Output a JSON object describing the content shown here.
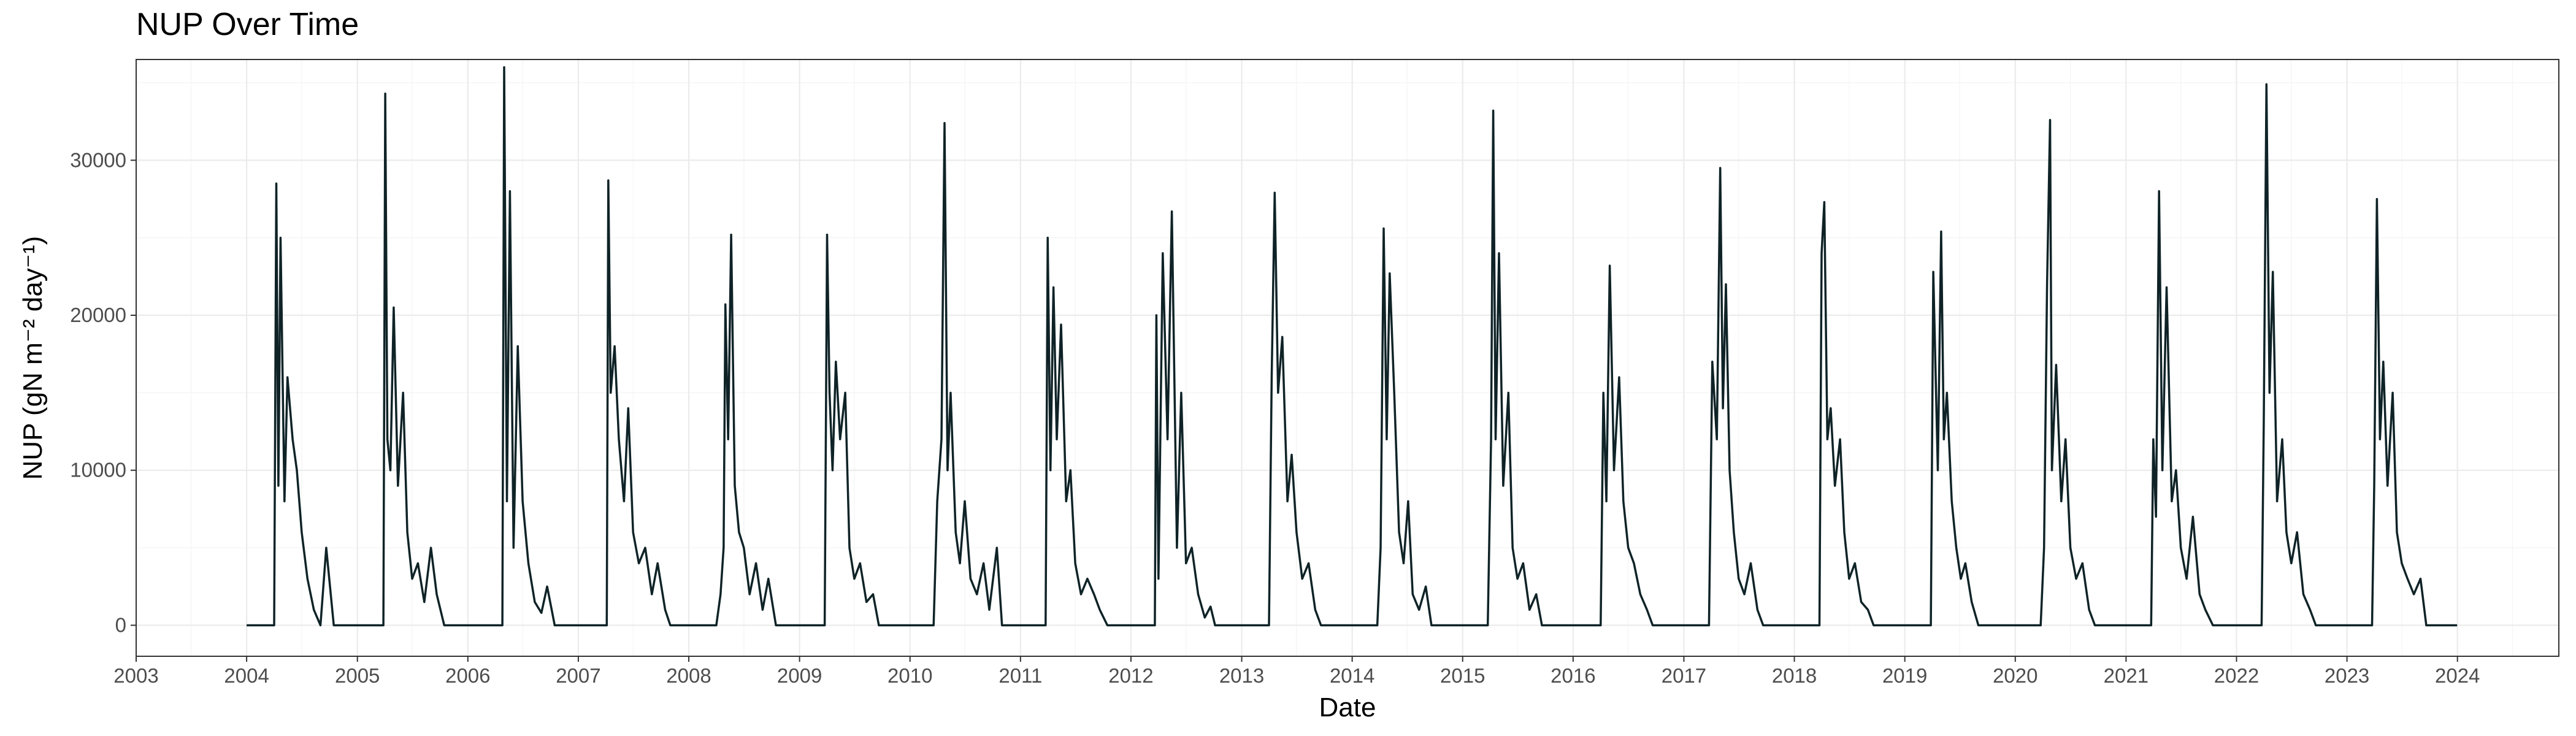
{
  "chart_data": {
    "type": "line",
    "title": "NUP Over Time",
    "xlabel": "Date",
    "ylabel": "NUP (gN m⁻² day⁻¹)",
    "ylim": [
      -2000,
      36500
    ],
    "xlim": [
      "2003-01-01",
      "2024-12-01"
    ],
    "x_ticks": [
      "2003",
      "2004",
      "2005",
      "2006",
      "2007",
      "2008",
      "2009",
      "2010",
      "2011",
      "2012",
      "2013",
      "2014",
      "2015",
      "2016",
      "2017",
      "2018",
      "2019",
      "2020",
      "2021",
      "2022",
      "2023",
      "2024"
    ],
    "y_ticks": [
      0,
      10000,
      20000,
      30000
    ],
    "grid": true,
    "line_color": "#0f2327",
    "series": [
      {
        "x": [
          "2004-01-01",
          "2004-04-01",
          "2004-04-08",
          "2004-04-15",
          "2004-04-22",
          "2004-05-05",
          "2004-05-15",
          "2004-06-01",
          "2004-06-15",
          "2004-07-01",
          "2004-07-20",
          "2004-08-10",
          "2004-09-01",
          "2004-09-20",
          "2004-10-15",
          "2004-11-01",
          "2004-12-31",
          "2005-03-28",
          "2005-04-03",
          "2005-04-10",
          "2005-04-20",
          "2005-05-01",
          "2005-05-15",
          "2005-06-01",
          "2005-06-15",
          "2005-07-01",
          "2005-07-20",
          "2005-08-10",
          "2005-09-01",
          "2005-09-20",
          "2005-10-15",
          "2005-11-01",
          "2005-12-31",
          "2006-04-25",
          "2006-05-01",
          "2006-05-10",
          "2006-05-20",
          "2006-06-01",
          "2006-06-15",
          "2006-07-01",
          "2006-07-20",
          "2006-08-10",
          "2006-09-01",
          "2006-09-20",
          "2006-10-15",
          "2006-11-01",
          "2006-12-31",
          "2007-04-05",
          "2007-04-10",
          "2007-04-18",
          "2007-05-01",
          "2007-05-15",
          "2007-06-01",
          "2007-06-15",
          "2007-07-01",
          "2007-07-20",
          "2007-08-10",
          "2007-09-01",
          "2007-09-20",
          "2007-10-15",
          "2007-11-01",
          "2007-12-31",
          "2008-04-01",
          "2008-04-15",
          "2008-04-25",
          "2008-05-01",
          "2008-05-10",
          "2008-05-20",
          "2008-06-01",
          "2008-06-15",
          "2008-07-01",
          "2008-07-20",
          "2008-08-10",
          "2008-09-01",
          "2008-09-20",
          "2008-10-15",
          "2008-11-01",
          "2008-12-31",
          "2009-03-25",
          "2009-04-02",
          "2009-04-10",
          "2009-04-20",
          "2009-05-01",
          "2009-05-15",
          "2009-06-01",
          "2009-06-15",
          "2009-07-01",
          "2009-07-20",
          "2009-08-10",
          "2009-09-01",
          "2009-09-20",
          "2009-10-15",
          "2009-11-01",
          "2009-12-31",
          "2010-03-20",
          "2010-04-01",
          "2010-04-15",
          "2010-04-25",
          "2010-05-05",
          "2010-05-15",
          "2010-06-01",
          "2010-06-15",
          "2010-07-01",
          "2010-07-20",
          "2010-08-10",
          "2010-09-01",
          "2010-09-20",
          "2010-10-15",
          "2010-11-01",
          "2010-12-31",
          "2011-03-25",
          "2011-04-01",
          "2011-04-10",
          "2011-04-20",
          "2011-05-01",
          "2011-05-15",
          "2011-06-01",
          "2011-06-15",
          "2011-07-01",
          "2011-07-20",
          "2011-08-10",
          "2011-09-01",
          "2011-09-20",
          "2011-10-15",
          "2011-11-01",
          "2011-12-31",
          "2012-03-20",
          "2012-03-25",
          "2012-04-01",
          "2012-04-15",
          "2012-05-01",
          "2012-05-15",
          "2012-06-01",
          "2012-06-15",
          "2012-07-01",
          "2012-07-20",
          "2012-08-10",
          "2012-09-01",
          "2012-09-20",
          "2012-10-05",
          "2012-10-20",
          "2012-12-31",
          "2013-04-01",
          "2013-04-10",
          "2013-04-20",
          "2013-05-01",
          "2013-05-15",
          "2013-06-01",
          "2013-06-15",
          "2013-07-01",
          "2013-07-20",
          "2013-08-10",
          "2013-09-01",
          "2013-09-20",
          "2013-10-15",
          "2013-11-01",
          "2013-12-31",
          "2014-03-25",
          "2014-04-05",
          "2014-04-15",
          "2014-04-25",
          "2014-05-05",
          "2014-05-20",
          "2014-06-05",
          "2014-06-20",
          "2014-07-05",
          "2014-07-20",
          "2014-08-10",
          "2014-09-01",
          "2014-09-20",
          "2014-10-15",
          "2014-11-01",
          "2014-12-31",
          "2015-03-25",
          "2015-04-05",
          "2015-04-12",
          "2015-04-20",
          "2015-05-01",
          "2015-05-15",
          "2015-06-01",
          "2015-06-15",
          "2015-07-01",
          "2015-07-20",
          "2015-08-10",
          "2015-09-01",
          "2015-09-20",
          "2015-10-15",
          "2015-11-01",
          "2015-12-31",
          "2016-04-01",
          "2016-04-10",
          "2016-04-20",
          "2016-05-01",
          "2016-05-15",
          "2016-06-01",
          "2016-06-15",
          "2016-07-01",
          "2016-07-20",
          "2016-08-10",
          "2016-09-01",
          "2016-09-20",
          "2016-10-15",
          "2016-11-01",
          "2016-12-31",
          "2017-03-25",
          "2017-04-05",
          "2017-04-20",
          "2017-05-01",
          "2017-05-10",
          "2017-05-20",
          "2017-06-01",
          "2017-06-15",
          "2017-07-01",
          "2017-07-20",
          "2017-08-10",
          "2017-09-01",
          "2017-09-20",
          "2017-10-15",
          "2017-11-01",
          "2017-12-31",
          "2018-03-25",
          "2018-04-01",
          "2018-04-10",
          "2018-04-20",
          "2018-05-01",
          "2018-05-15",
          "2018-06-01",
          "2018-06-15",
          "2018-07-01",
          "2018-07-20",
          "2018-08-10",
          "2018-09-01",
          "2018-09-20",
          "2018-10-15",
          "2018-11-01",
          "2018-12-31",
          "2019-03-28",
          "2019-04-05",
          "2019-04-20",
          "2019-05-01",
          "2019-05-10",
          "2019-05-20",
          "2019-06-05",
          "2019-06-20",
          "2019-07-05",
          "2019-07-20",
          "2019-08-10",
          "2019-09-01",
          "2019-09-20",
          "2019-10-15",
          "2019-11-01",
          "2019-12-31",
          "2020-03-25",
          "2020-04-05",
          "2020-04-15",
          "2020-04-25",
          "2020-05-01",
          "2020-05-15",
          "2020-06-01",
          "2020-06-15",
          "2020-07-01",
          "2020-07-20",
          "2020-08-10",
          "2020-09-01",
          "2020-09-20",
          "2020-10-15",
          "2020-11-01",
          "2020-12-31",
          "2021-03-25",
          "2021-04-01",
          "2021-04-10",
          "2021-04-20",
          "2021-05-01",
          "2021-05-15",
          "2021-06-01",
          "2021-06-15",
          "2021-07-01",
          "2021-07-20",
          "2021-08-10",
          "2021-09-01",
          "2021-09-20",
          "2021-10-15",
          "2021-11-01",
          "2021-12-31",
          "2022-03-25",
          "2022-04-01",
          "2022-04-10",
          "2022-04-20",
          "2022-05-01",
          "2022-05-15",
          "2022-06-01",
          "2022-06-15",
          "2022-07-01",
          "2022-07-20",
          "2022-08-10",
          "2022-09-01",
          "2022-09-20",
          "2022-10-15",
          "2022-11-01",
          "2022-12-31",
          "2023-03-25",
          "2023-04-01",
          "2023-04-10",
          "2023-04-20",
          "2023-05-01",
          "2023-05-15",
          "2023-06-01",
          "2023-06-15",
          "2023-07-01",
          "2023-07-20",
          "2023-08-10",
          "2023-09-01",
          "2023-09-20",
          "2023-10-15",
          "2023-11-01",
          "2023-12-31"
        ],
        "y": [
          0,
          0,
          28500,
          9000,
          25000,
          8000,
          16000,
          12000,
          10000,
          6000,
          3000,
          1000,
          0,
          5000,
          0,
          0,
          0,
          0,
          34300,
          12000,
          10000,
          20500,
          9000,
          15000,
          6000,
          3000,
          4000,
          1500,
          5000,
          2000,
          0,
          0,
          0,
          0,
          36000,
          8000,
          28000,
          5000,
          18000,
          8000,
          4000,
          1500,
          800,
          2500,
          0,
          0,
          0,
          0,
          28700,
          15000,
          18000,
          12000,
          8000,
          14000,
          6000,
          4000,
          5000,
          2000,
          4000,
          1000,
          0,
          0,
          0,
          2000,
          5000,
          20700,
          12000,
          25200,
          9000,
          6000,
          5000,
          2000,
          4000,
          1000,
          3000,
          0,
          0,
          0,
          0,
          25200,
          15000,
          10000,
          17000,
          12000,
          15000,
          5000,
          3000,
          4000,
          1500,
          2000,
          0,
          0,
          0,
          0,
          0,
          8000,
          12000,
          32400,
          10000,
          15000,
          6000,
          4000,
          8000,
          3000,
          2000,
          4000,
          1000,
          5000,
          0,
          0,
          0,
          25000,
          10000,
          21800,
          12000,
          19400,
          8000,
          10000,
          4000,
          2000,
          3000,
          2000,
          1000,
          0,
          0,
          0,
          0,
          20000,
          3000,
          24000,
          12000,
          26700,
          5000,
          15000,
          4000,
          5000,
          2000,
          500,
          1200,
          0,
          0,
          0,
          0,
          16000,
          27900,
          15000,
          18600,
          8000,
          11000,
          6000,
          3000,
          4000,
          1000,
          0,
          0,
          0,
          0,
          0,
          5000,
          25600,
          12000,
          22700,
          15000,
          6000,
          4000,
          8000,
          2000,
          1000,
          2500,
          0,
          0,
          0,
          0,
          0,
          12000,
          33200,
          12000,
          24000,
          9000,
          15000,
          5000,
          3000,
          4000,
          1000,
          2000,
          0,
          0,
          0,
          0,
          0,
          15000,
          8000,
          23200,
          10000,
          16000,
          8000,
          5000,
          4000,
          2000,
          1000,
          0,
          0,
          0,
          0,
          0,
          17000,
          12000,
          29500,
          14000,
          22000,
          10000,
          6000,
          3000,
          2000,
          4000,
          1000,
          0,
          0,
          0,
          0,
          0,
          24000,
          27300,
          12000,
          14000,
          9000,
          12000,
          6000,
          3000,
          4000,
          1500,
          1000,
          0,
          0,
          0,
          0,
          0,
          22800,
          10000,
          25400,
          12000,
          15000,
          8000,
          5000,
          3000,
          4000,
          1500,
          0,
          0,
          0,
          0,
          0,
          0,
          5000,
          22000,
          32600,
          10000,
          16800,
          8000,
          12000,
          5000,
          3000,
          4000,
          1000,
          0,
          0,
          0,
          0,
          0,
          12000,
          7000,
          28000,
          10000,
          21800,
          8000,
          10000,
          5000,
          3000,
          7000,
          2000,
          1000,
          0,
          0,
          0,
          0,
          13000,
          34900,
          15000,
          22800,
          8000,
          12000,
          6000,
          4000,
          6000,
          2000,
          1000,
          0,
          0,
          0,
          0,
          0,
          9000,
          27500,
          12000,
          17000,
          9000,
          15000,
          6000,
          4000,
          3000,
          2000,
          3000,
          0,
          0,
          0,
          0
        ]
      }
    ]
  }
}
